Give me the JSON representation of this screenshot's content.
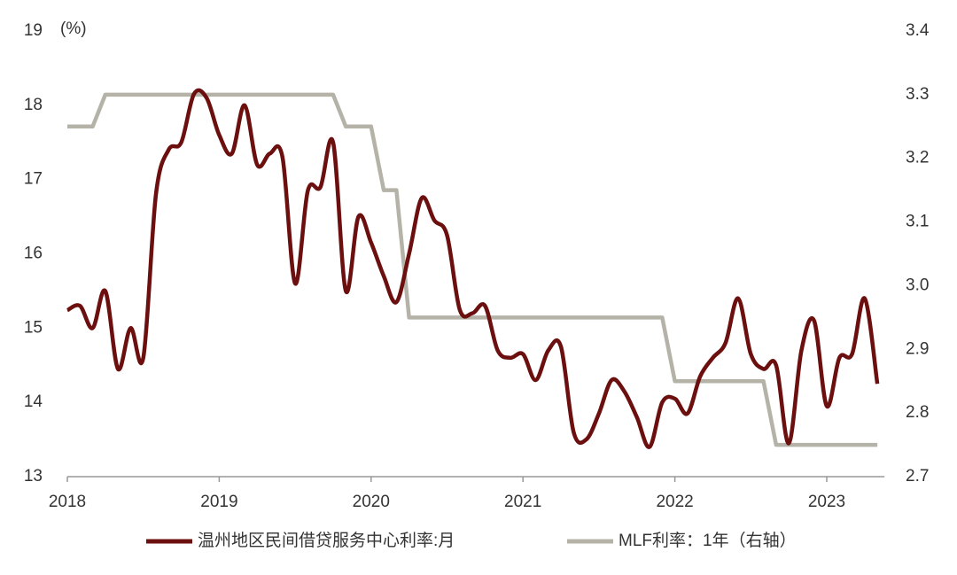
{
  "chart_data": {
    "type": "line",
    "annotation": "(%)",
    "categories": [
      "2018",
      null,
      null,
      null,
      null,
      null,
      null,
      null,
      null,
      null,
      null,
      null,
      "2019",
      null,
      null,
      null,
      null,
      null,
      null,
      null,
      null,
      null,
      null,
      null,
      "2020",
      null,
      null,
      null,
      null,
      null,
      null,
      null,
      null,
      null,
      null,
      null,
      "2021",
      null,
      null,
      null,
      null,
      null,
      null,
      null,
      null,
      null,
      null,
      null,
      "2022",
      null,
      null,
      null,
      null,
      null,
      null,
      null,
      null,
      null,
      null,
      null,
      "2023",
      null,
      null,
      null,
      null
    ],
    "series": [
      {
        "name": "温州地区民间借贷服务中心利率:月",
        "color": "#6b0f0f",
        "values": [
          15.24,
          15.3,
          15.0,
          15.5,
          14.45,
          15.0,
          14.6,
          16.8,
          17.4,
          17.5,
          18.15,
          18.1,
          17.6,
          17.35,
          18.0,
          17.2,
          17.35,
          17.3,
          15.6,
          16.85,
          16.9,
          17.5,
          15.5,
          16.5,
          16.15,
          15.7,
          15.35,
          16.0,
          16.75,
          16.45,
          16.25,
          15.25,
          15.2,
          15.3,
          14.7,
          14.6,
          14.65,
          14.3,
          14.7,
          14.75,
          13.6,
          13.5,
          13.85,
          14.3,
          14.15,
          13.8,
          13.4,
          14.0,
          14.05,
          13.85,
          14.35,
          14.6,
          14.8,
          15.4,
          14.65,
          14.45,
          14.5,
          13.45,
          14.7,
          15.1,
          13.95,
          14.6,
          14.65,
          15.4,
          14.25
        ]
      },
      {
        "name": "MLF利率：1年（右轴）",
        "color": "#b5b3a8",
        "axis": "y2",
        "values": [
          3.25,
          3.25,
          3.25,
          3.3,
          3.3,
          3.3,
          3.3,
          3.3,
          3.3,
          3.3,
          3.3,
          3.3,
          3.3,
          3.3,
          3.3,
          3.3,
          3.3,
          3.3,
          3.3,
          3.3,
          3.3,
          3.3,
          3.25,
          3.25,
          3.25,
          3.15,
          3.15,
          2.95,
          2.95,
          2.95,
          2.95,
          2.95,
          2.95,
          2.95,
          2.95,
          2.95,
          2.95,
          2.95,
          2.95,
          2.95,
          2.95,
          2.95,
          2.95,
          2.95,
          2.95,
          2.95,
          2.95,
          2.95,
          2.85,
          2.85,
          2.85,
          2.85,
          2.85,
          2.85,
          2.85,
          2.85,
          2.75,
          2.75,
          2.75,
          2.75,
          2.75,
          2.75,
          2.75,
          2.75,
          2.75
        ]
      }
    ],
    "ylim": [
      13,
      19
    ],
    "yticks": [
      13,
      14,
      15,
      16,
      17,
      18,
      19
    ],
    "y2lim": [
      2.7,
      3.4
    ],
    "y2ticks": [
      2.7,
      2.8,
      2.9,
      {
        "value": 3,
        "label": "3.0"
      },
      3.1,
      3.2,
      3.3,
      3.4
    ],
    "legend": "bottom",
    "grid": false
  }
}
